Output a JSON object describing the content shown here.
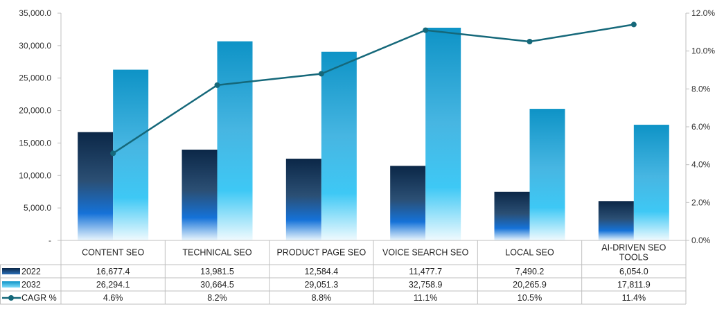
{
  "chart_data": {
    "type": "bar",
    "categories": [
      "CONTENT SEO",
      "TECHNICAL SEO",
      "PRODUCT PAGE SEO",
      "VOICE SEARCH SEO",
      "LOCAL SEO",
      "AI-DRIVEN SEO TOOLS"
    ],
    "series": [
      {
        "name": "2022",
        "values": [
          16677.4,
          13981.5,
          12584.4,
          11477.7,
          7490.2,
          6054.0
        ],
        "labels": [
          "16,677.4",
          "13,981.5",
          "12,584.4",
          "11,477.7",
          "7,490.2",
          "6,054.0"
        ]
      },
      {
        "name": "2032",
        "values": [
          26294.1,
          30664.5,
          29051.3,
          32758.9,
          20265.9,
          17811.9
        ],
        "labels": [
          "26,294.1",
          "30,664.5",
          "29,051.3",
          "32,758.9",
          "20,265.9",
          "17,811.9"
        ]
      },
      {
        "name": "CAGR %",
        "type": "line",
        "axis": "right",
        "values": [
          4.6,
          8.2,
          8.8,
          11.1,
          10.5,
          11.4
        ],
        "labels": [
          "4.6%",
          "8.2%",
          "8.8%",
          "11.1%",
          "10.5%",
          "11.4%"
        ]
      }
    ],
    "left_axis": {
      "ylim": [
        0,
        35000
      ],
      "ticks": [
        "-",
        "5,000.0",
        "10,000.0",
        "15,000.0",
        "20,000.0",
        "25,000.0",
        "30,000.0",
        "35,000.0"
      ]
    },
    "right_axis": {
      "ylim": [
        0,
        12
      ],
      "ticks": [
        "0.0%",
        "2.0%",
        "4.0%",
        "6.0%",
        "8.0%",
        "10.0%",
        "12.0%"
      ]
    },
    "grid": false,
    "legend": "data-table",
    "colors": {
      "line": "#15687a",
      "series2022_top": "#0b2747",
      "series2032_top": "#0e93c6"
    }
  }
}
